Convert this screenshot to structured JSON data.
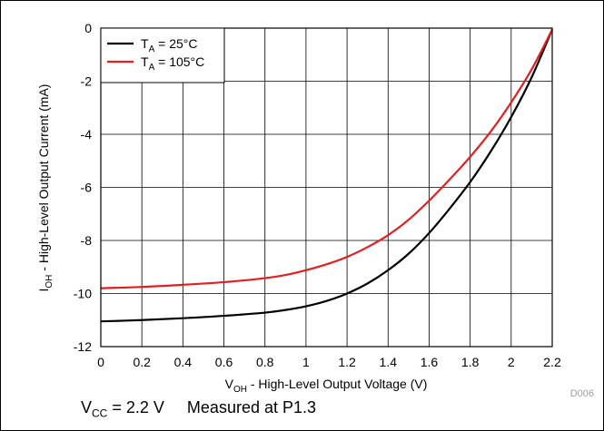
{
  "chart_data": {
    "type": "line",
    "xlabel": {
      "main": "V",
      "sub": "OH",
      "rest": " - High-Level Output Voltage (V)"
    },
    "ylabel": {
      "main": "I",
      "sub": "OH",
      "rest": " - High-Level Output Current (mA)"
    },
    "xlim": [
      0,
      2.2
    ],
    "ylim": [
      -12,
      0
    ],
    "x_ticks": [
      "0",
      "0.2",
      "0.4",
      "0.6",
      "0.8",
      "1",
      "1.2",
      "1.4",
      "1.6",
      "1.8",
      "2",
      "2.2"
    ],
    "y_ticks": [
      "0",
      "-2",
      "-4",
      "-6",
      "-8",
      "-10",
      "-12"
    ],
    "x_tick_values": [
      0,
      0.2,
      0.4,
      0.6,
      0.8,
      1.0,
      1.2,
      1.4,
      1.6,
      1.8,
      2.0,
      2.2
    ],
    "y_tick_values": [
      0,
      -2,
      -4,
      -6,
      -8,
      -10,
      -12
    ],
    "grid": true,
    "legend_position": "top-left",
    "series": [
      {
        "name": {
          "main": "T",
          "sub": "A",
          "rest": " = 25°C"
        },
        "color": "#000000",
        "x": [
          0,
          0.2,
          0.4,
          0.6,
          0.8,
          0.9,
          1.0,
          1.1,
          1.2,
          1.3,
          1.4,
          1.5,
          1.6,
          1.7,
          1.8,
          1.9,
          2.0,
          2.1,
          2.2
        ],
        "y": [
          -11.05,
          -11.0,
          -10.93,
          -10.84,
          -10.72,
          -10.62,
          -10.48,
          -10.28,
          -10.0,
          -9.62,
          -9.12,
          -8.5,
          -7.72,
          -6.8,
          -5.8,
          -4.65,
          -3.35,
          -1.85,
          -0.05
        ]
      },
      {
        "name": {
          "main": "T",
          "sub": "A",
          "rest": " = 105°C"
        },
        "color": "#e02020",
        "x": [
          0,
          0.2,
          0.4,
          0.6,
          0.8,
          0.9,
          1.0,
          1.1,
          1.2,
          1.3,
          1.4,
          1.5,
          1.6,
          1.7,
          1.8,
          1.9,
          2.0,
          2.1,
          2.2
        ],
        "y": [
          -9.8,
          -9.75,
          -9.67,
          -9.57,
          -9.42,
          -9.3,
          -9.12,
          -8.9,
          -8.62,
          -8.25,
          -7.8,
          -7.22,
          -6.5,
          -5.7,
          -4.85,
          -3.9,
          -2.8,
          -1.55,
          -0.05
        ]
      }
    ],
    "annotation": "D006"
  },
  "footer": {
    "vcc": {
      "main": "V",
      "sub": "CC",
      "rest": " = 2.2 V"
    },
    "measured": "Measured at P1.3"
  }
}
